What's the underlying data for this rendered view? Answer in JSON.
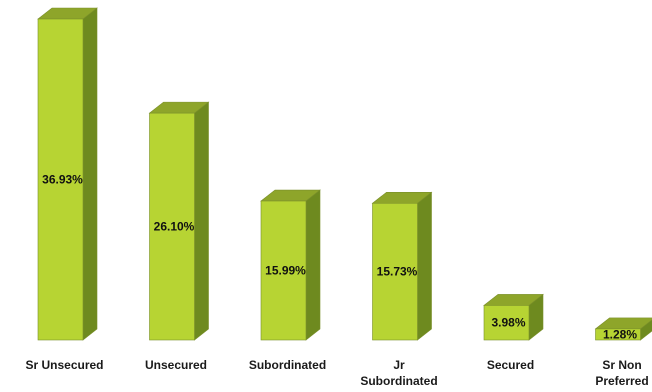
{
  "chart_data": {
    "type": "bar",
    "title": "",
    "xlabel": "",
    "ylabel": "",
    "categories": [
      [
        "Sr Unsecured"
      ],
      [
        "Unsecured"
      ],
      [
        "Subordinated"
      ],
      [
        "Jr",
        "Subordinated"
      ],
      [
        "Secured"
      ],
      [
        "Sr Non",
        "Preferred"
      ]
    ],
    "values": [
      36.93,
      26.1,
      15.99,
      15.73,
      3.98,
      1.28
    ],
    "data_labels": [
      "36.93%",
      "26.10%",
      "15.99%",
      "15.73%",
      "3.98%",
      "1.28%"
    ],
    "ylim": [
      0,
      40
    ],
    "grid": false,
    "legend": "none",
    "colors": {
      "front": "#b7d433",
      "side": "#6e8a1f",
      "top": "#8ea52a",
      "edge": "#7a8f2a"
    }
  }
}
